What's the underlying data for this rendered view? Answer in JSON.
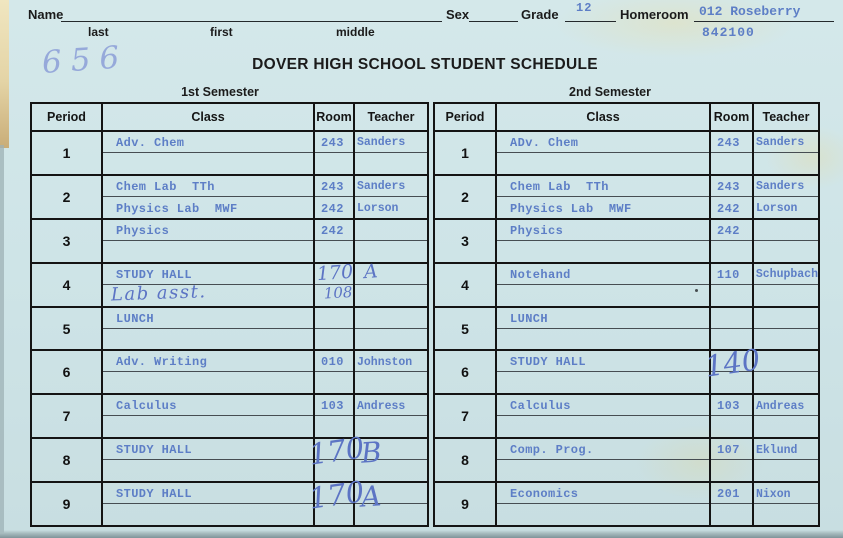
{
  "header": {
    "name_label": "Name",
    "name_sublabels": {
      "last": "last",
      "first": "first",
      "middle": "middle"
    },
    "sex_label": "Sex",
    "grade_label": "Grade",
    "grade_value": "12",
    "homeroom_label": "Homeroom",
    "homeroom_value": "012 Roseberry",
    "code_value": "842100",
    "handwritten_number": "656",
    "title": "DOVER HIGH SCHOOL STUDENT SCHEDULE"
  },
  "columns": [
    "Period",
    "Class",
    "Room",
    "Teacher"
  ],
  "colors": {
    "card_background": "#cee4e7",
    "table_border": "#141414",
    "typed_blue": "#5d7ec6",
    "handwriting_blue": "#5c74c4",
    "pencil_blue": "#96a9da",
    "ink_black": "#1b1b1b",
    "edge_tan": "#e4d4a6"
  },
  "semesters": [
    {
      "label": "1st Semester",
      "rows": [
        {
          "period": "1",
          "lines": [
            {
              "class": "Adv. Chem",
              "room": "243",
              "teacher": "Sanders"
            },
            {}
          ]
        },
        {
          "period": "2",
          "lines": [
            {
              "class": "Chem Lab  TTh",
              "room": "243",
              "teacher": "Sanders"
            },
            {
              "class": "Physics Lab  MWF",
              "room": "242",
              "teacher": "Lorson"
            }
          ]
        },
        {
          "period": "3",
          "lines": [
            {
              "class": "Physics",
              "room": "242"
            },
            {}
          ]
        },
        {
          "period": "4",
          "lines": [
            {
              "class": "STUDY HALL",
              "room": "170",
              "teacher": "A",
              "hw": [
                "room",
                "teacher"
              ]
            },
            {
              "class": "Lab asst.",
              "room": "108",
              "hw": [
                "class",
                "room"
              ]
            }
          ]
        },
        {
          "period": "5",
          "lines": [
            {
              "class": "LUNCH"
            },
            {}
          ]
        },
        {
          "period": "6",
          "lines": [
            {
              "class": "Adv. Writing",
              "room": "010",
              "teacher": "Johnston"
            },
            {}
          ]
        },
        {
          "period": "7",
          "lines": [
            {
              "class": "Calculus",
              "room": "103",
              "teacher": "Andress"
            },
            {}
          ]
        },
        {
          "period": "8",
          "lines": [
            {
              "class": "STUDY HALL",
              "room": "170",
              "teacher": "B",
              "hw": [
                "room",
                "teacher"
              ],
              "big": true
            },
            {}
          ]
        },
        {
          "period": "9",
          "lines": [
            {
              "class": "STUDY HALL",
              "room": "170",
              "teacher": "A",
              "hw": [
                "room",
                "teacher"
              ],
              "big": true
            },
            {}
          ]
        }
      ]
    },
    {
      "label": "2nd Semester",
      "rows": [
        {
          "period": "1",
          "lines": [
            {
              "class": "ADv. Chem",
              "room": "243",
              "teacher": "Sanders"
            },
            {}
          ]
        },
        {
          "period": "2",
          "lines": [
            {
              "class": "Chem Lab  TTh",
              "room": "243",
              "teacher": "Sanders"
            },
            {
              "class": "Physics Lab  MWF",
              "room": "242",
              "teacher": "Lorson"
            }
          ]
        },
        {
          "period": "3",
          "lines": [
            {
              "class": "Physics",
              "room": "242"
            },
            {}
          ]
        },
        {
          "period": "4",
          "lines": [
            {
              "class": "Notehand",
              "room": "110",
              "teacher": "Schupbach"
            },
            {}
          ]
        },
        {
          "period": "5",
          "lines": [
            {
              "class": "LUNCH"
            },
            {}
          ]
        },
        {
          "period": "6",
          "lines": [
            {
              "class": "STUDY HALL",
              "room": "140",
              "hw": [
                "room"
              ],
              "big": true
            },
            {}
          ]
        },
        {
          "period": "7",
          "lines": [
            {
              "class": "Calculus",
              "room": "103",
              "teacher": "Andreas"
            },
            {}
          ]
        },
        {
          "period": "8",
          "lines": [
            {
              "class": "Comp. Prog.",
              "room": "107",
              "teacher": "Eklund"
            },
            {}
          ]
        },
        {
          "period": "9",
          "lines": [
            {
              "class": "Economics",
              "room": "201",
              "teacher": "Nixon"
            },
            {}
          ]
        }
      ]
    }
  ]
}
